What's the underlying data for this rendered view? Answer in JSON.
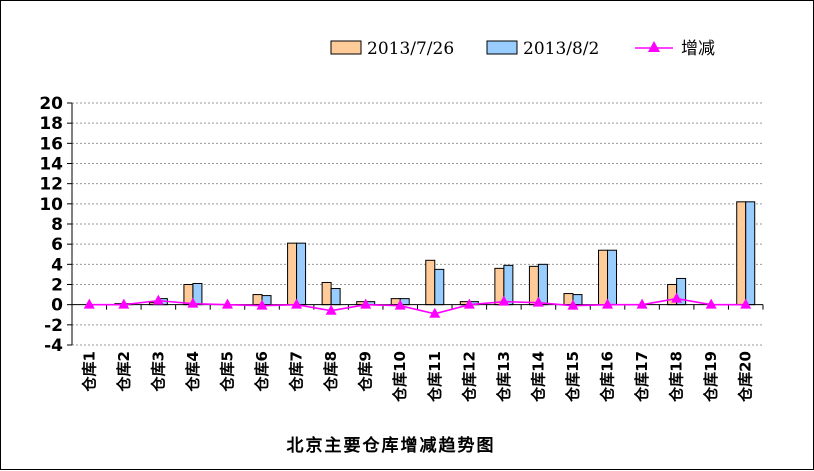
{
  "chart_data": {
    "type": "bar",
    "title": "北京主要仓库增减趋势图",
    "categories": [
      "仓库1",
      "仓库2",
      "仓库3",
      "仓库4",
      "仓库5",
      "仓库6",
      "仓库7",
      "仓库8",
      "仓库9",
      "仓库10",
      "仓库11",
      "仓库12",
      "仓库13",
      "仓库14",
      "仓库15",
      "仓库16",
      "仓库17",
      "仓库18",
      "仓库19",
      "仓库20"
    ],
    "series": [
      {
        "name": "2013/7/26",
        "kind": "bar",
        "color": "#FFCC99",
        "values": [
          0,
          0.1,
          0.2,
          2.0,
          0,
          1.0,
          6.1,
          2.2,
          0.3,
          0.6,
          4.4,
          0.3,
          3.6,
          3.8,
          1.1,
          5.4,
          0,
          2.0,
          0,
          10.2
        ]
      },
      {
        "name": "2013/8/2",
        "kind": "bar",
        "color": "#99CCFF",
        "values": [
          0,
          0.1,
          0.6,
          2.1,
          0,
          0.9,
          6.1,
          1.6,
          0.3,
          0.6,
          3.5,
          0.3,
          3.9,
          4.0,
          1.0,
          5.4,
          0,
          2.6,
          0,
          10.2
        ]
      },
      {
        "name": "增减",
        "kind": "line",
        "color": "#FF00FF",
        "values": [
          0,
          0,
          0.4,
          0.1,
          0,
          -0.1,
          0,
          -0.6,
          0,
          -0.1,
          -0.9,
          0,
          0.3,
          0.2,
          -0.1,
          0,
          0,
          0.6,
          0,
          0
        ]
      }
    ],
    "ylim": [
      -4,
      20
    ],
    "yticks": [
      "-4",
      "-2",
      "0",
      "2",
      "4",
      "6",
      "8",
      "10",
      "12",
      "14",
      "16",
      "18",
      "20"
    ],
    "grid": true,
    "legend": "top-right"
  }
}
